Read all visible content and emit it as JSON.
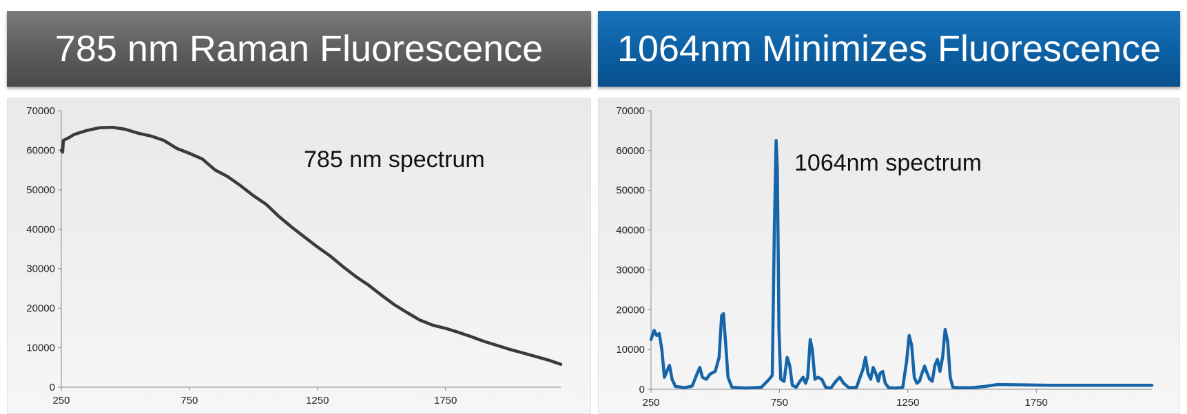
{
  "colors": {
    "left_header_bg": "#5c5c5c",
    "right_header_bg": "#0b5fa3",
    "series_left": "#3a3a3a",
    "series_right": "#1565a8"
  },
  "chart_data": [
    {
      "type": "line",
      "title": "785 nm Raman Fluorescence",
      "annotation": "785 nm  spectrum",
      "xlabel": "",
      "ylabel": "",
      "xlim": [
        250,
        2200
      ],
      "ylim": [
        0,
        70000
      ],
      "xticks": [
        250,
        750,
        1250,
        1750
      ],
      "yticks": [
        0,
        10000,
        20000,
        30000,
        40000,
        50000,
        60000,
        70000
      ],
      "grid": false,
      "series": [
        {
          "values": [
            [
              250,
              60000
            ],
            [
              255,
              59500
            ],
            [
              258,
              62500
            ],
            [
              280,
              63200
            ],
            [
              300,
              64000
            ],
            [
              350,
              65000
            ],
            [
              400,
              65700
            ],
            [
              450,
              65800
            ],
            [
              500,
              65300
            ],
            [
              550,
              64300
            ],
            [
              600,
              63600
            ],
            [
              650,
              62500
            ],
            [
              700,
              60500
            ],
            [
              750,
              59200
            ],
            [
              800,
              57800
            ],
            [
              850,
              55000
            ],
            [
              900,
              53300
            ],
            [
              950,
              51000
            ],
            [
              1000,
              48500
            ],
            [
              1050,
              46300
            ],
            [
              1100,
              43200
            ],
            [
              1150,
              40500
            ],
            [
              1200,
              38000
            ],
            [
              1250,
              35500
            ],
            [
              1300,
              33200
            ],
            [
              1350,
              30500
            ],
            [
              1400,
              28000
            ],
            [
              1450,
              25800
            ],
            [
              1500,
              23300
            ],
            [
              1550,
              20900
            ],
            [
              1600,
              18900
            ],
            [
              1650,
              17000
            ],
            [
              1700,
              15700
            ],
            [
              1750,
              14900
            ],
            [
              1800,
              13900
            ],
            [
              1850,
              12800
            ],
            [
              1900,
              11600
            ],
            [
              1950,
              10600
            ],
            [
              2000,
              9600
            ],
            [
              2050,
              8700
            ],
            [
              2100,
              7800
            ],
            [
              2150,
              6900
            ],
            [
              2200,
              5800
            ]
          ]
        }
      ]
    },
    {
      "type": "line",
      "title": "1064nm Minimizes Fluorescence",
      "annotation": "1064nm  spectrum",
      "xlabel": "",
      "ylabel": "",
      "xlim": [
        250,
        2200
      ],
      "ylim": [
        0,
        70000
      ],
      "xticks": [
        250,
        750,
        1250,
        1750
      ],
      "yticks": [
        0,
        10000,
        20000,
        30000,
        40000,
        50000,
        60000,
        70000
      ],
      "grid": false,
      "series": [
        {
          "values": [
            [
              250,
              12500
            ],
            [
              262,
              14800
            ],
            [
              272,
              13500
            ],
            [
              282,
              14000
            ],
            [
              292,
              10000
            ],
            [
              302,
              3000
            ],
            [
              315,
              5000
            ],
            [
              322,
              6000
            ],
            [
              332,
              2500
            ],
            [
              345,
              700
            ],
            [
              380,
              400
            ],
            [
              410,
              800
            ],
            [
              430,
              4000
            ],
            [
              440,
              5500
            ],
            [
              450,
              3000
            ],
            [
              465,
              2500
            ],
            [
              480,
              3800
            ],
            [
              500,
              4500
            ],
            [
              515,
              8000
            ],
            [
              525,
              18500
            ],
            [
              532,
              19000
            ],
            [
              540,
              12000
            ],
            [
              550,
              3000
            ],
            [
              565,
              500
            ],
            [
              620,
              300
            ],
            [
              680,
              500
            ],
            [
              710,
              2500
            ],
            [
              722,
              3500
            ],
            [
              730,
              40000
            ],
            [
              737,
              62500
            ],
            [
              742,
              55000
            ],
            [
              748,
              15000
            ],
            [
              755,
              2500
            ],
            [
              768,
              2000
            ],
            [
              780,
              8000
            ],
            [
              790,
              6000
            ],
            [
              800,
              1000
            ],
            [
              815,
              500
            ],
            [
              830,
              2000
            ],
            [
              842,
              3000
            ],
            [
              852,
              1500
            ],
            [
              860,
              3000
            ],
            [
              870,
              12500
            ],
            [
              878,
              10000
            ],
            [
              888,
              2500
            ],
            [
              900,
              3000
            ],
            [
              915,
              2500
            ],
            [
              930,
              500
            ],
            [
              950,
              300
            ],
            [
              970,
              2000
            ],
            [
              985,
              3000
            ],
            [
              1000,
              1500
            ],
            [
              1020,
              400
            ],
            [
              1050,
              500
            ],
            [
              1075,
              5000
            ],
            [
              1085,
              8000
            ],
            [
              1095,
              4000
            ],
            [
              1105,
              2500
            ],
            [
              1115,
              5500
            ],
            [
              1125,
              4000
            ],
            [
              1135,
              2000
            ],
            [
              1142,
              4000
            ],
            [
              1152,
              4500
            ],
            [
              1162,
              1500
            ],
            [
              1175,
              400
            ],
            [
              1200,
              300
            ],
            [
              1230,
              500
            ],
            [
              1245,
              7000
            ],
            [
              1255,
              13500
            ],
            [
              1265,
              11000
            ],
            [
              1275,
              3000
            ],
            [
              1285,
              1500
            ],
            [
              1295,
              2000
            ],
            [
              1305,
              4000
            ],
            [
              1315,
              5800
            ],
            [
              1325,
              4000
            ],
            [
              1335,
              2500
            ],
            [
              1345,
              2000
            ],
            [
              1355,
              6000
            ],
            [
              1365,
              7500
            ],
            [
              1375,
              4500
            ],
            [
              1385,
              8000
            ],
            [
              1395,
              15000
            ],
            [
              1405,
              12000
            ],
            [
              1415,
              3000
            ],
            [
              1425,
              500
            ],
            [
              1450,
              400
            ],
            [
              1500,
              400
            ],
            [
              1550,
              700
            ],
            [
              1600,
              1200
            ],
            [
              1700,
              1100
            ],
            [
              1800,
              1000
            ],
            [
              1900,
              1000
            ],
            [
              2000,
              1000
            ],
            [
              2100,
              1000
            ],
            [
              2200,
              1000
            ]
          ]
        }
      ]
    }
  ]
}
